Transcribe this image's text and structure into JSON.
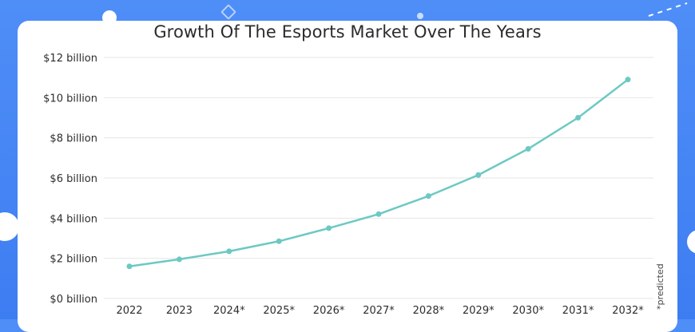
{
  "chart_data": {
    "type": "line",
    "title": "Growth Of The Esports Market Over The Years",
    "xlabel": "",
    "ylabel": "",
    "categories": [
      "2022",
      "2023",
      "2024*",
      "2025*",
      "2026*",
      "2027*",
      "2028*",
      "2029*",
      "2030*",
      "2031*",
      "2032*"
    ],
    "series": [
      {
        "values": [
          1.6,
          1.95,
          2.35,
          2.85,
          3.5,
          4.2,
          5.1,
          6.15,
          7.45,
          9.0,
          10.9
        ]
      }
    ],
    "y_ticks": [
      {
        "value": 0,
        "label": "$0 billion"
      },
      {
        "value": 2,
        "label": "$2 billion"
      },
      {
        "value": 4,
        "label": "$4 billion"
      },
      {
        "value": 6,
        "label": "$6 billion"
      },
      {
        "value": 8,
        "label": "$8 billion"
      },
      {
        "value": 10,
        "label": "$10 billion"
      },
      {
        "value": 12,
        "label": "$12 billion"
      }
    ],
    "ylim": [
      0,
      12
    ],
    "grid": true,
    "note": "*predicted",
    "colors": {
      "line": "#6cc9c3",
      "grid": "#e6e6e6"
    }
  }
}
